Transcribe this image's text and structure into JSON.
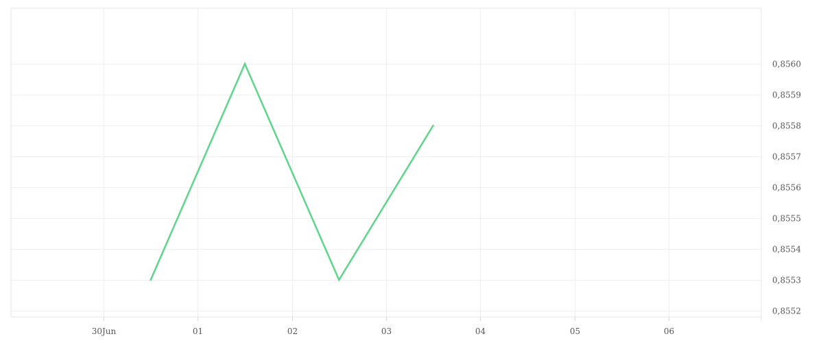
{
  "chart_data": {
    "type": "line",
    "title": "",
    "xlabel": "",
    "ylabel": "",
    "x_ticks": [
      "30Jun",
      "01",
      "02",
      "03",
      "04",
      "05",
      "06"
    ],
    "x_tick_dates": [
      "06-30",
      "07-01",
      "07-02",
      "07-03",
      "07-04",
      "07-05",
      "07-06"
    ],
    "series": [
      {
        "x": [
          "06-30 12:00",
          "07-01 12:00",
          "07-02 12:00",
          "07-03 12:00"
        ],
        "values": [
          0.8553,
          0.856,
          0.8553,
          0.8558
        ],
        "color": "#5cd68a"
      }
    ],
    "ylim": [
      0.85518,
      0.85618
    ],
    "y_ticks": [
      0.8552,
      0.8553,
      0.8554,
      0.8555,
      0.8556,
      0.8557,
      0.8558,
      0.8559,
      0.856
    ],
    "y_tick_labels": [
      "0,8552",
      "0,8553",
      "0,8554",
      "0,8555",
      "0,8556",
      "0,8557",
      "0,8558",
      "0,8559",
      "0,8560"
    ],
    "y_axis_side": "right",
    "grid": true,
    "legend": "none"
  }
}
